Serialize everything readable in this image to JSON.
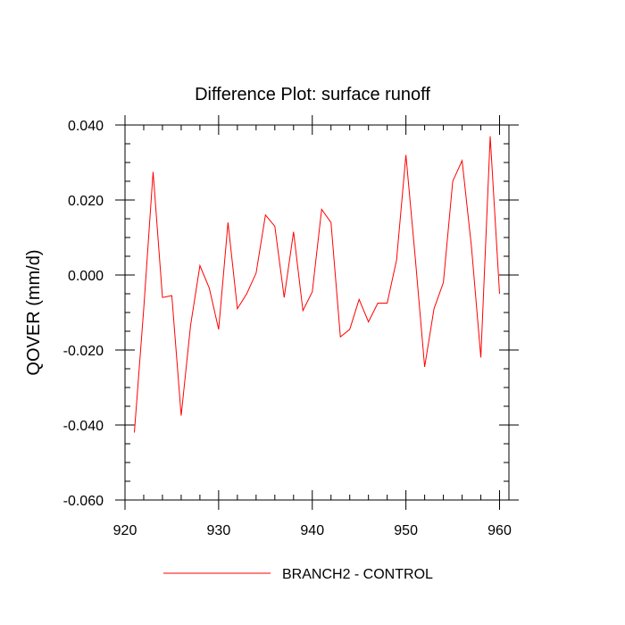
{
  "chart_data": {
    "type": "line",
    "title": "Difference Plot: surface runoff",
    "xlabel": "",
    "ylabel": "QOVER  (mm/d)",
    "xlim": [
      920,
      961
    ],
    "ylim": [
      -0.06,
      0.04
    ],
    "x_ticks": [
      920,
      930,
      940,
      950,
      960
    ],
    "x_tick_labels": [
      "920",
      "930",
      "940",
      "950",
      "960"
    ],
    "y_ticks": [
      -0.06,
      -0.04,
      -0.02,
      0.0,
      0.02,
      0.04
    ],
    "y_tick_labels": [
      "-0.060",
      "-0.040",
      "-0.020",
      "0.000",
      "0.020",
      "0.040"
    ],
    "grid": false,
    "legend_position": "bottom-center",
    "series": [
      {
        "name": "BRANCH2 - CONTROL",
        "color": "#ff0000",
        "x": [
          921,
          922,
          923,
          924,
          925,
          926,
          927,
          928,
          929,
          930,
          931,
          932,
          933,
          934,
          935,
          936,
          937,
          938,
          939,
          940,
          941,
          942,
          943,
          944,
          945,
          946,
          947,
          948,
          949,
          950,
          951,
          952,
          953,
          954,
          955,
          956,
          957,
          958,
          959,
          960
        ],
        "y": [
          -0.042,
          -0.009,
          0.0275,
          -0.006,
          -0.0055,
          -0.0375,
          -0.0135,
          0.0025,
          -0.0035,
          -0.0145,
          0.014,
          -0.009,
          -0.005,
          0.0005,
          0.016,
          0.013,
          -0.006,
          0.0115,
          -0.0095,
          -0.0045,
          0.0175,
          0.014,
          -0.0165,
          -0.0145,
          -0.0065,
          -0.0125,
          -0.0075,
          -0.0075,
          0.004,
          0.032,
          0.0045,
          -0.0245,
          -0.009,
          -0.002,
          0.025,
          0.0305,
          0.0075,
          -0.022,
          0.037,
          -0.005
        ]
      }
    ]
  }
}
